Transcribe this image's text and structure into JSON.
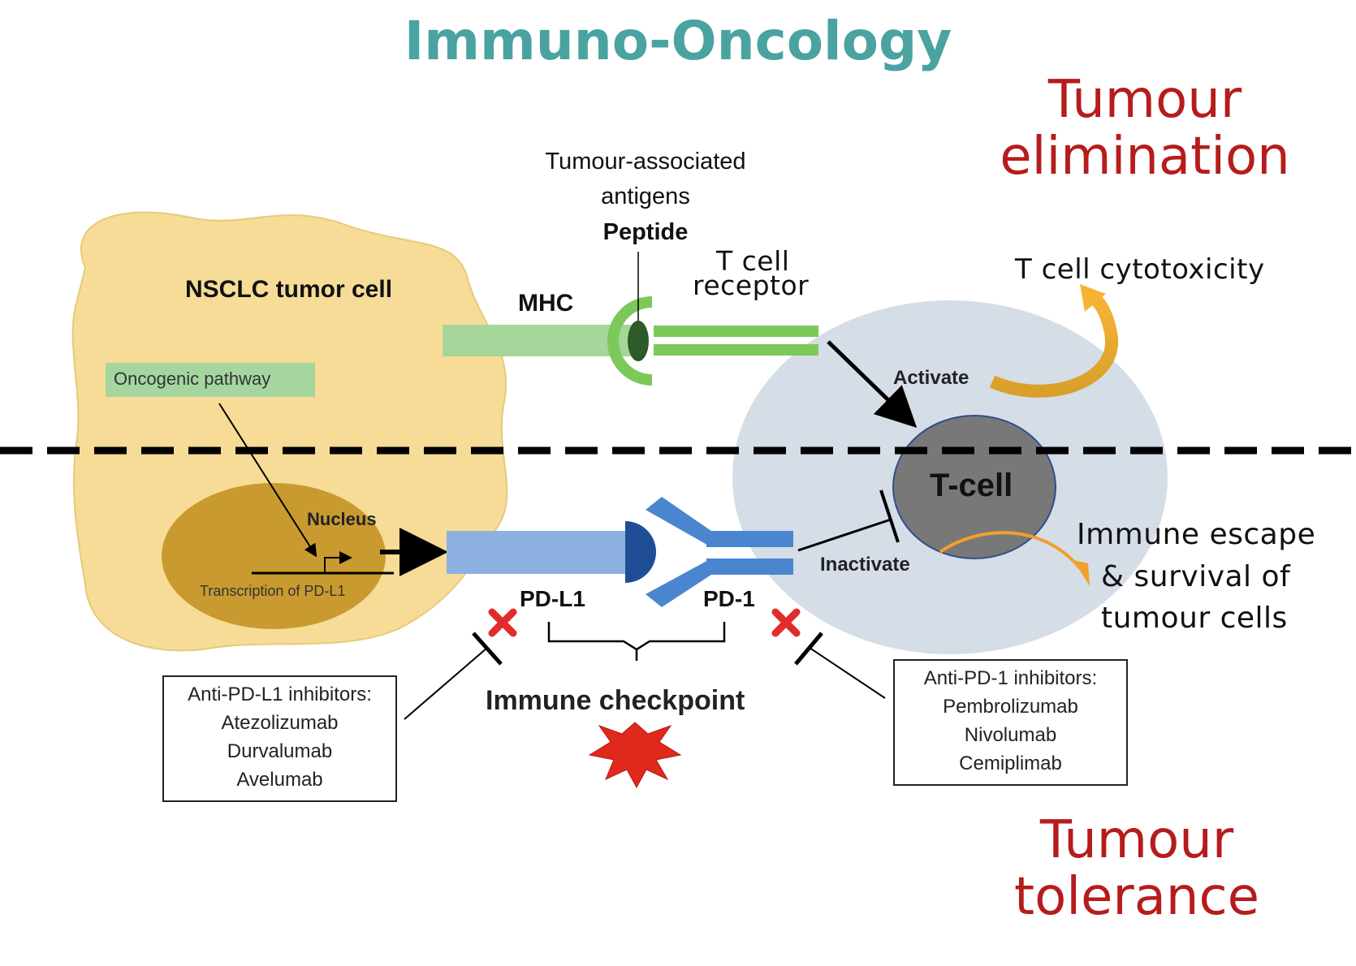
{
  "title": "Immuno-Oncology",
  "outcomes": {
    "top": "Tumour elimination",
    "bottom": "Tumour tolerance"
  },
  "tumour_cell": {
    "label": "NSCLC tumor cell",
    "pathway": "Oncogenic pathway",
    "nucleus": "Nucleus",
    "transcription": "Transcription of PD-L1"
  },
  "antigen": {
    "line1": "Tumour-associated",
    "line2": "antigens",
    "peptide": "Peptide"
  },
  "molecules": {
    "mhc": "MHC",
    "tcr_line1": "T cell",
    "tcr_line2": "receptor",
    "pdl1": "PD-L1",
    "pd1": "PD-1"
  },
  "tcell": {
    "label": "T-cell",
    "activate": "Activate",
    "inactivate": "Inactivate",
    "cytotoxicity": "T cell cytotoxicity",
    "escape_line1": "Immune escape",
    "escape_line2": "& survival of",
    "escape_line3": "tumour cells"
  },
  "checkpoint": "Immune checkpoint",
  "anti_pdl1": {
    "heading": "Anti-PD-L1 inhibitors:",
    "drugs": [
      "Atezolizumab",
      "Durvalumab",
      "Avelumab"
    ]
  },
  "anti_pd1": {
    "heading": "Anti-PD-1 inhibitors:",
    "drugs": [
      "Pembrolizumab",
      "Nivolumab",
      "Cemiplimab"
    ]
  },
  "colors": {
    "title": "#4aa3a0",
    "outcome": "#b61c1c",
    "tumour_cell": "#f7dc97",
    "nucleus": "#c99a30",
    "pathway_box": "#a5d6a0",
    "mhc_bar": "#a6d69a",
    "tcr": "#7cc95a",
    "pdl1": "#8cb0e0",
    "pd1": "#4a86cf",
    "tcell_outer": "#d5dde7",
    "tcell_core": "#787878",
    "arrow_orange": "#f0a02c",
    "starburst": "#e0281c"
  }
}
